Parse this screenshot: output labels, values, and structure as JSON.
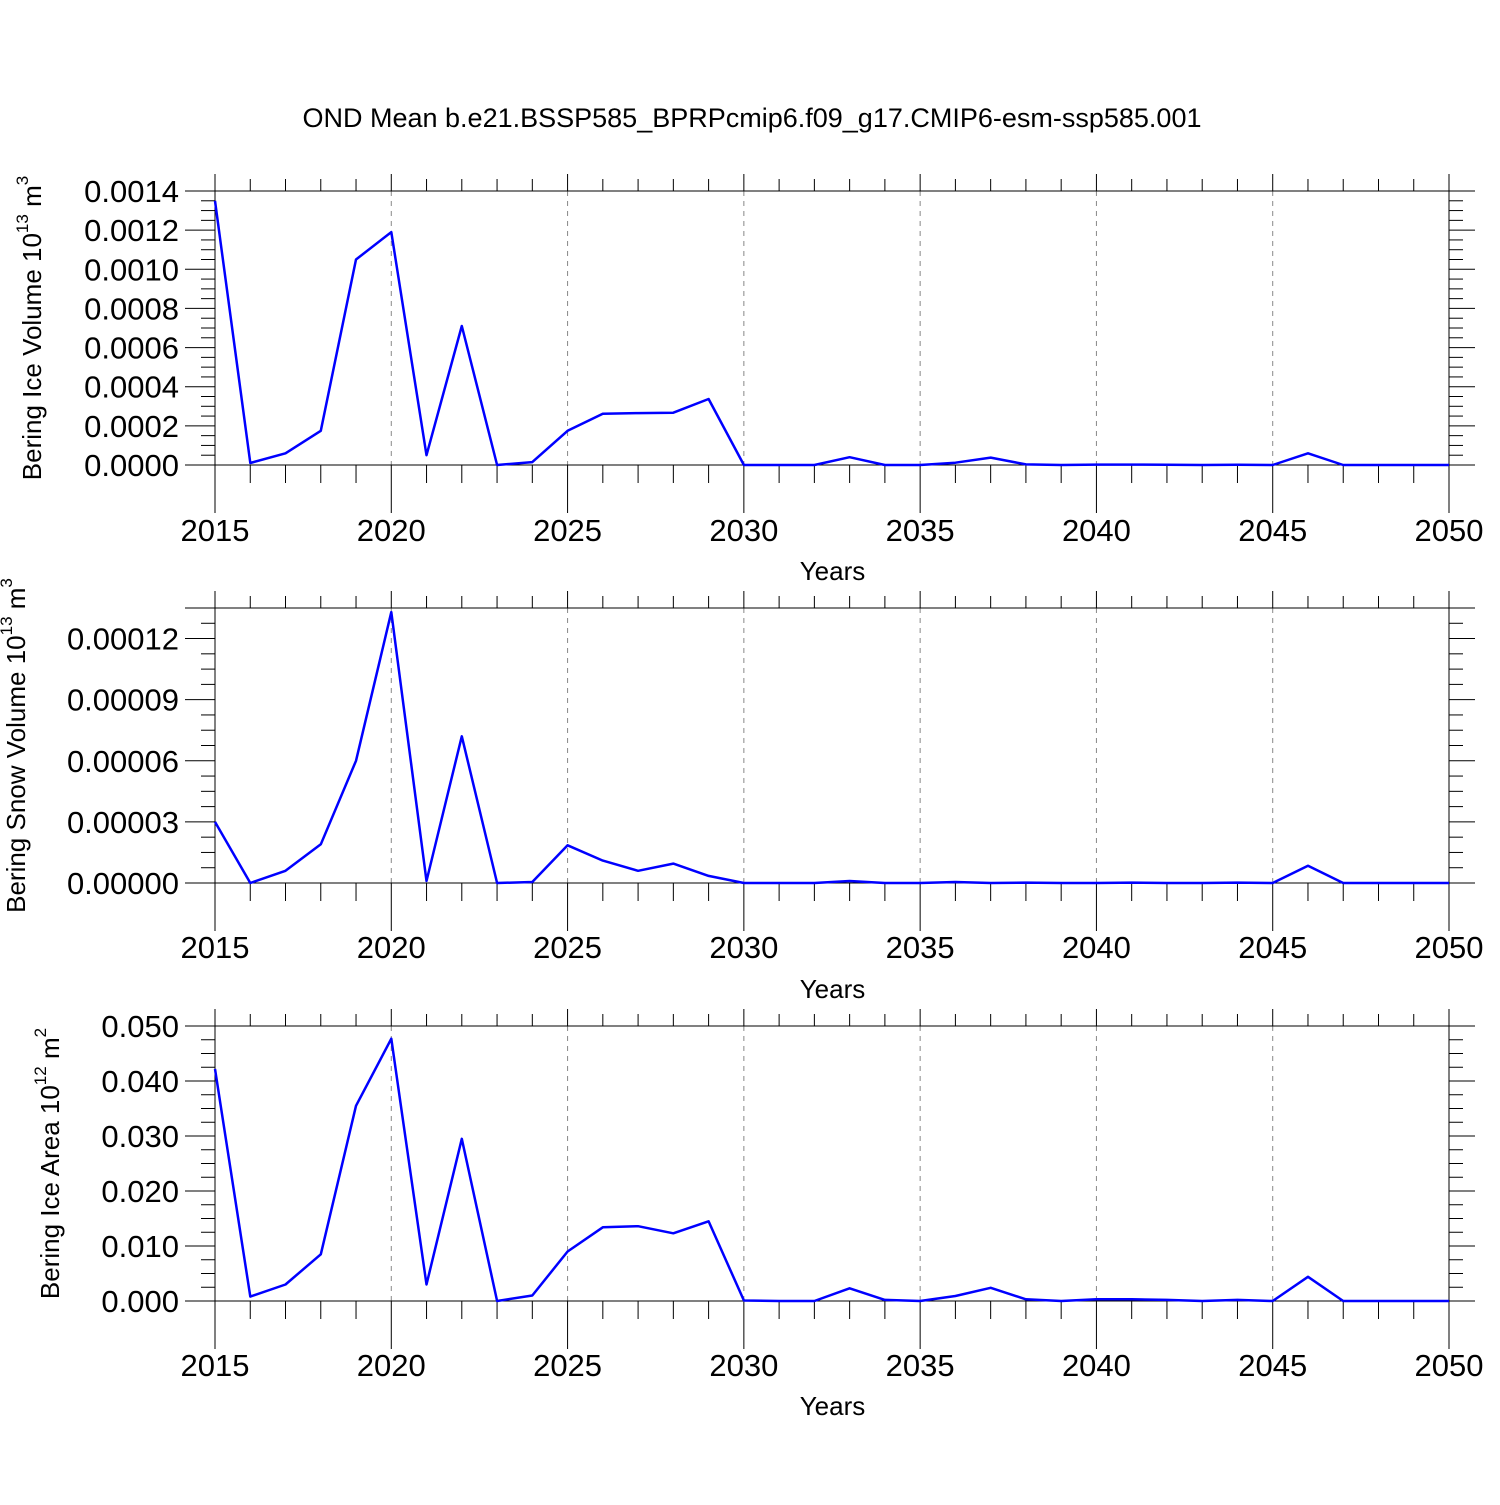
{
  "title": "OND Mean b.e21.BSSP585_BPRPcmip6.f09_g17.CMIP6-esm-ssp585.001",
  "colors": {
    "line": "#0000ff",
    "axis": "#000000",
    "grid": "#888888",
    "background": "#ffffff"
  },
  "chart_data": [
    {
      "type": "line",
      "xlabel": "Years",
      "ylabel": {
        "text": "Bering Ice Volume 10",
        "sup": "13",
        "unit": " m",
        "unit_sup": "3"
      },
      "xlim": [
        2015,
        2050
      ],
      "ylim": [
        0,
        0.0014
      ],
      "xticks": [
        "2015",
        "2020",
        "2025",
        "2030",
        "2035",
        "2040",
        "2045",
        "2050"
      ],
      "yticks": [
        "0.0000",
        "0.0002",
        "0.0004",
        "0.0006",
        "0.0008",
        "0.0010",
        "0.0012",
        "0.0014"
      ],
      "grid": "vertical dashed at major x ticks",
      "x": [
        2015,
        2016,
        2017,
        2018,
        2019,
        2020,
        2021,
        2022,
        2023,
        2024,
        2025,
        2026,
        2027,
        2028,
        2029,
        2030,
        2031,
        2032,
        2033,
        2034,
        2035,
        2036,
        2037,
        2038,
        2039,
        2040,
        2041,
        2042,
        2043,
        2044,
        2045,
        2046,
        2047,
        2048,
        2049,
        2050
      ],
      "series": [
        {
          "values": [
            0.00135,
            1e-05,
            6e-05,
            0.000175,
            0.00105,
            0.00119,
            5e-05,
            0.00071,
            0.0,
            1.5e-05,
            0.000175,
            0.000262,
            0.000265,
            0.000267,
            0.000337,
            0.0,
            0.0,
            0.0,
            4e-05,
            0.0,
            0.0,
            1.2e-05,
            3.8e-05,
            3e-06,
            0.0,
            2e-06,
            2e-06,
            1e-06,
            0.0,
            1e-06,
            0.0,
            6e-05,
            0.0,
            0.0,
            0.0,
            0.0
          ]
        }
      ]
    },
    {
      "type": "line",
      "xlabel": "Years",
      "ylabel": {
        "text": "Bering Snow Volume 10",
        "sup": "13",
        "unit": " m",
        "unit_sup": "3"
      },
      "xlim": [
        2015,
        2050
      ],
      "ylim": [
        0,
        0.000135
      ],
      "xticks": [
        "2015",
        "2020",
        "2025",
        "2030",
        "2035",
        "2040",
        "2045",
        "2050"
      ],
      "yticks": [
        "0.00000",
        "0.00003",
        "0.00006",
        "0.00009",
        "0.00012"
      ],
      "grid": "vertical dashed at major x ticks",
      "x": [
        2015,
        2016,
        2017,
        2018,
        2019,
        2020,
        2021,
        2022,
        2023,
        2024,
        2025,
        2026,
        2027,
        2028,
        2029,
        2030,
        2031,
        2032,
        2033,
        2034,
        2035,
        2036,
        2037,
        2038,
        2039,
        2040,
        2041,
        2042,
        2043,
        2044,
        2045,
        2046,
        2047,
        2048,
        2049,
        2050
      ],
      "series": [
        {
          "values": [
            3e-05,
            0.0,
            6e-06,
            1.9e-05,
            6e-05,
            0.000133,
            1e-06,
            7.2e-05,
            0.0,
            5e-07,
            1.85e-05,
            1.1e-05,
            6e-06,
            9.5e-06,
            3.5e-06,
            0.0,
            0.0,
            0.0,
            1e-06,
            0.0,
            0.0,
            5e-07,
            0.0,
            2e-07,
            0.0,
            0.0,
            2e-07,
            0.0,
            0.0,
            2e-07,
            0.0,
            8.5e-06,
            0.0,
            0.0,
            0.0,
            0.0
          ]
        }
      ]
    },
    {
      "type": "line",
      "xlabel": "Years",
      "ylabel": {
        "text": "Bering Ice Area 10",
        "sup": "12",
        "unit": " m",
        "unit_sup": "2"
      },
      "xlim": [
        2015,
        2050
      ],
      "ylim": [
        0,
        0.05
      ],
      "xticks": [
        "2015",
        "2020",
        "2025",
        "2030",
        "2035",
        "2040",
        "2045",
        "2050"
      ],
      "yticks": [
        "0.000",
        "0.010",
        "0.020",
        "0.030",
        "0.040",
        "0.050"
      ],
      "grid": "vertical dashed at major x ticks",
      "x": [
        2015,
        2016,
        2017,
        2018,
        2019,
        2020,
        2021,
        2022,
        2023,
        2024,
        2025,
        2026,
        2027,
        2028,
        2029,
        2030,
        2031,
        2032,
        2033,
        2034,
        2035,
        2036,
        2037,
        2038,
        2039,
        2040,
        2041,
        2042,
        2043,
        2044,
        2045,
        2046,
        2047,
        2048,
        2049,
        2050
      ],
      "series": [
        {
          "values": [
            0.0422,
            0.0008,
            0.003,
            0.0085,
            0.0355,
            0.0477,
            0.003,
            0.0295,
            0.0,
            0.001,
            0.009,
            0.0134,
            0.0136,
            0.0123,
            0.0145,
            0.0001,
            0.0,
            0.0,
            0.0023,
            0.0002,
            0.0,
            0.0009,
            0.0024,
            0.0003,
            0.0,
            0.0003,
            0.0003,
            0.0002,
            0.0,
            0.0002,
            0.0,
            0.0044,
            0.0,
            0.0,
            0.0,
            0.0
          ]
        }
      ]
    }
  ]
}
